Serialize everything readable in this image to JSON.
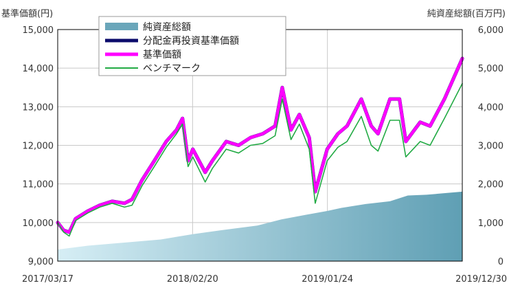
{
  "chart_data": {
    "type": "line",
    "y_left_label": "基準価額(円)",
    "y_right_label": "純資産総額(百万円)",
    "y_left_lim": [
      9000,
      15000
    ],
    "y_left_ticks": [
      "9,000",
      "10,000",
      "11,000",
      "12,000",
      "13,000",
      "14,000",
      "15,000"
    ],
    "y_right_lim": [
      0,
      6000
    ],
    "y_right_ticks": [
      "0",
      "1,000",
      "2,000",
      "3,000",
      "4,000",
      "5,000",
      "6,000"
    ],
    "x_ticks": [
      "2017/03/17",
      "2018/02/20",
      "2019/01/24",
      "2019/12/30"
    ],
    "x_lim": [
      "2017-03-17",
      "2019-12-30"
    ],
    "grid": true,
    "legend_position": "top-left",
    "colors": {
      "area": "#5f9fb4",
      "reinvested": "#0b0b6b",
      "nav": "#ff00ff",
      "benchmark": "#22aa44"
    },
    "legend": [
      {
        "label": "純資産総額",
        "key": "area"
      },
      {
        "label": "分配金再投資基準価額",
        "key": "reinvested"
      },
      {
        "label": "基準価額",
        "key": "nav"
      },
      {
        "label": "ベンチマーク",
        "key": "benchmark"
      }
    ],
    "series": [
      {
        "name": "純資産総額",
        "axis": "right",
        "kind": "area",
        "points": [
          [
            "2017-03-17",
            300
          ],
          [
            "2017-06-01",
            400
          ],
          [
            "2017-09-01",
            480
          ],
          [
            "2017-12-01",
            560
          ],
          [
            "2018-02-20",
            700
          ],
          [
            "2018-05-01",
            800
          ],
          [
            "2018-08-01",
            920
          ],
          [
            "2018-10-01",
            1080
          ],
          [
            "2018-12-01",
            1200
          ],
          [
            "2019-01-24",
            1300
          ],
          [
            "2019-03-01",
            1380
          ],
          [
            "2019-05-01",
            1480
          ],
          [
            "2019-07-01",
            1550
          ],
          [
            "2019-08-15",
            1700
          ],
          [
            "2019-10-01",
            1720
          ],
          [
            "2019-12-30",
            1800
          ]
        ]
      },
      {
        "name": "分配金再投資基準価額",
        "axis": "left",
        "kind": "line",
        "points": [
          [
            "2017-03-17",
            10000
          ],
          [
            "2017-04-01",
            9800
          ],
          [
            "2017-04-15",
            9750
          ],
          [
            "2017-05-01",
            10100
          ],
          [
            "2017-06-01",
            10300
          ],
          [
            "2017-07-01",
            10450
          ],
          [
            "2017-08-01",
            10550
          ],
          [
            "2017-09-01",
            10500
          ],
          [
            "2017-09-20",
            10600
          ],
          [
            "2017-10-15",
            11100
          ],
          [
            "2017-11-15",
            11600
          ],
          [
            "2017-12-15",
            12100
          ],
          [
            "2018-01-10",
            12400
          ],
          [
            "2018-01-25",
            12700
          ],
          [
            "2018-02-08",
            11600
          ],
          [
            "2018-02-20",
            11900
          ],
          [
            "2018-03-23",
            11300
          ],
          [
            "2018-04-10",
            11600
          ],
          [
            "2018-05-15",
            12100
          ],
          [
            "2018-06-15",
            12000
          ],
          [
            "2018-07-15",
            12200
          ],
          [
            "2018-08-15",
            12300
          ],
          [
            "2018-09-15",
            12500
          ],
          [
            "2018-10-03",
            13500
          ],
          [
            "2018-10-25",
            12400
          ],
          [
            "2018-11-15",
            12800
          ],
          [
            "2018-12-10",
            12200
          ],
          [
            "2018-12-25",
            10800
          ],
          [
            "2019-01-24",
            11900
          ],
          [
            "2019-02-20",
            12300
          ],
          [
            "2019-03-15",
            12500
          ],
          [
            "2019-04-20",
            13200
          ],
          [
            "2019-05-15",
            12500
          ],
          [
            "2019-06-01",
            12300
          ],
          [
            "2019-07-01",
            13200
          ],
          [
            "2019-07-25",
            13200
          ],
          [
            "2019-08-10",
            12100
          ],
          [
            "2019-09-15",
            12600
          ],
          [
            "2019-10-10",
            12500
          ],
          [
            "2019-11-15",
            13200
          ],
          [
            "2019-12-30",
            14250
          ]
        ]
      },
      {
        "name": "基準価額",
        "axis": "left",
        "kind": "line",
        "points": [
          [
            "2017-03-17",
            10000
          ],
          [
            "2017-04-01",
            9800
          ],
          [
            "2017-04-15",
            9750
          ],
          [
            "2017-05-01",
            10100
          ],
          [
            "2017-06-01",
            10300
          ],
          [
            "2017-07-01",
            10450
          ],
          [
            "2017-08-01",
            10550
          ],
          [
            "2017-09-01",
            10500
          ],
          [
            "2017-09-20",
            10600
          ],
          [
            "2017-10-15",
            11100
          ],
          [
            "2017-11-15",
            11600
          ],
          [
            "2017-12-15",
            12100
          ],
          [
            "2018-01-10",
            12400
          ],
          [
            "2018-01-25",
            12700
          ],
          [
            "2018-02-08",
            11600
          ],
          [
            "2018-02-20",
            11900
          ],
          [
            "2018-03-23",
            11300
          ],
          [
            "2018-04-10",
            11600
          ],
          [
            "2018-05-15",
            12100
          ],
          [
            "2018-06-15",
            12000
          ],
          [
            "2018-07-15",
            12200
          ],
          [
            "2018-08-15",
            12300
          ],
          [
            "2018-09-15",
            12500
          ],
          [
            "2018-10-03",
            13500
          ],
          [
            "2018-10-25",
            12400
          ],
          [
            "2018-11-15",
            12800
          ],
          [
            "2018-12-10",
            12200
          ],
          [
            "2018-12-25",
            10800
          ],
          [
            "2019-01-24",
            11900
          ],
          [
            "2019-02-20",
            12300
          ],
          [
            "2019-03-15",
            12500
          ],
          [
            "2019-04-20",
            13200
          ],
          [
            "2019-05-15",
            12500
          ],
          [
            "2019-06-01",
            12300
          ],
          [
            "2019-07-01",
            13200
          ],
          [
            "2019-07-25",
            13200
          ],
          [
            "2019-08-10",
            12100
          ],
          [
            "2019-09-15",
            12600
          ],
          [
            "2019-10-10",
            12500
          ],
          [
            "2019-11-15",
            13200
          ],
          [
            "2019-12-30",
            14250
          ]
        ]
      },
      {
        "name": "ベンチマーク",
        "axis": "left",
        "kind": "line",
        "points": [
          [
            "2017-03-17",
            10000
          ],
          [
            "2017-04-01",
            9750
          ],
          [
            "2017-04-15",
            9650
          ],
          [
            "2017-05-01",
            10050
          ],
          [
            "2017-06-01",
            10250
          ],
          [
            "2017-07-01",
            10400
          ],
          [
            "2017-08-01",
            10500
          ],
          [
            "2017-09-01",
            10400
          ],
          [
            "2017-09-20",
            10450
          ],
          [
            "2017-10-15",
            10950
          ],
          [
            "2017-11-15",
            11450
          ],
          [
            "2017-12-15",
            11950
          ],
          [
            "2018-01-10",
            12300
          ],
          [
            "2018-01-25",
            12550
          ],
          [
            "2018-02-08",
            11450
          ],
          [
            "2018-02-20",
            11700
          ],
          [
            "2018-03-23",
            11050
          ],
          [
            "2018-04-10",
            11400
          ],
          [
            "2018-05-15",
            11900
          ],
          [
            "2018-06-15",
            11800
          ],
          [
            "2018-07-15",
            12000
          ],
          [
            "2018-08-15",
            12050
          ],
          [
            "2018-09-15",
            12250
          ],
          [
            "2018-10-03",
            13200
          ],
          [
            "2018-10-25",
            12150
          ],
          [
            "2018-11-15",
            12550
          ],
          [
            "2018-12-10",
            11900
          ],
          [
            "2018-12-25",
            10500
          ],
          [
            "2019-01-24",
            11600
          ],
          [
            "2019-02-20",
            11950
          ],
          [
            "2019-03-15",
            12100
          ],
          [
            "2019-04-20",
            12750
          ],
          [
            "2019-05-15",
            12000
          ],
          [
            "2019-06-01",
            11850
          ],
          [
            "2019-07-01",
            12650
          ],
          [
            "2019-07-25",
            12650
          ],
          [
            "2019-08-10",
            11700
          ],
          [
            "2019-09-15",
            12100
          ],
          [
            "2019-10-10",
            12000
          ],
          [
            "2019-11-15",
            12700
          ],
          [
            "2019-12-30",
            13600
          ]
        ]
      }
    ]
  }
}
